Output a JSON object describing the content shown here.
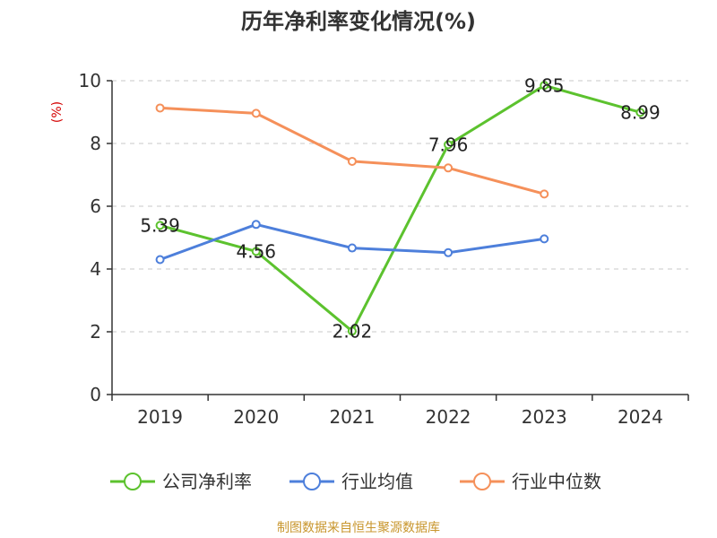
{
  "title": "历年净利率变化情况(%)",
  "source": "制图数据来自恒生聚源数据库",
  "chart_data": {
    "type": "line",
    "title": "历年净利率变化情况(%)",
    "ylabel": "(%)",
    "xlabel": "",
    "categories": [
      "2019",
      "2020",
      "2021",
      "2022",
      "2023",
      "2024"
    ],
    "ylim": [
      0,
      10
    ],
    "yticks": [
      0,
      2,
      4,
      6,
      8,
      10
    ],
    "grid": true,
    "legend_position": "bottom",
    "series": [
      {
        "name": "公司净利率",
        "color": "#5cc22e",
        "values": [
          5.39,
          4.56,
          2.02,
          7.96,
          9.85,
          8.99
        ],
        "show_labels": true
      },
      {
        "name": "行业均值",
        "color": "#4d7fdb",
        "values": [
          4.3,
          5.42,
          4.67,
          4.52,
          4.96,
          null
        ],
        "show_labels": false
      },
      {
        "name": "行业中位数",
        "color": "#f5905a",
        "values": [
          9.13,
          8.96,
          7.43,
          7.22,
          6.39,
          null
        ],
        "show_labels": false
      }
    ]
  }
}
